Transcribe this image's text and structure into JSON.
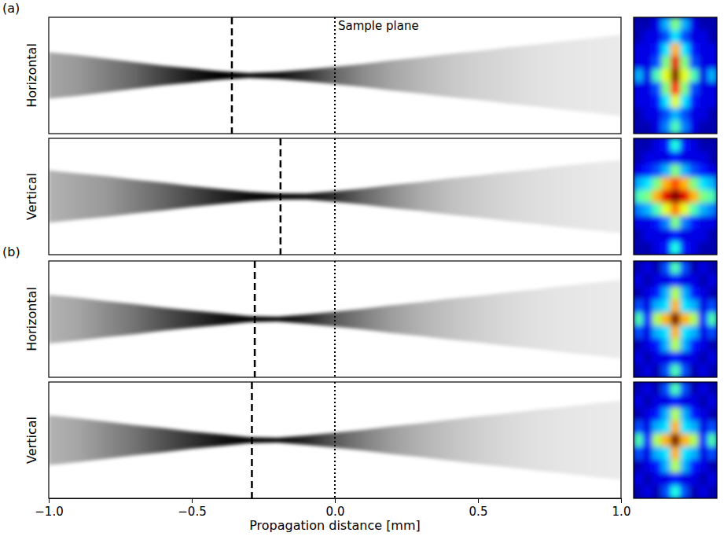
{
  "chart_data": [
    {
      "type": "area",
      "panel_label": "(a)",
      "ylabel": "Horizontal",
      "xlim": [
        -1,
        1
      ],
      "ylim": [
        -1,
        1
      ],
      "tick_labels": false,
      "x": [
        -1,
        -0.9,
        -0.8,
        -0.7,
        -0.6,
        -0.5,
        -0.4,
        -0.3,
        -0.2,
        -0.1,
        0,
        0.1,
        0.2,
        0.3,
        0.4,
        0.5,
        0.6,
        0.7,
        0.8,
        0.9,
        1
      ],
      "values": [
        0.4,
        0.35,
        0.29,
        0.23,
        0.17,
        0.12,
        0.07,
        0.04,
        0.06,
        0.1,
        0.15,
        0.2,
        0.26,
        0.31,
        0.37,
        0.42,
        0.48,
        0.53,
        0.59,
        0.64,
        0.7
      ],
      "intensity": [
        0.35,
        0.4,
        0.5,
        0.6,
        0.75,
        0.9,
        1.0,
        1.0,
        0.95,
        0.8,
        0.6,
        0.45,
        0.35,
        0.28,
        0.22,
        0.18,
        0.15,
        0.12,
        0.1,
        0.09,
        0.08
      ],
      "vlines": [
        {
          "x": -0.36,
          "line_style": "dashed"
        },
        {
          "x": 0,
          "line_style": "dotted"
        }
      ],
      "annotations": [
        {
          "x": 0,
          "text": "Sample plane"
        }
      ]
    },
    {
      "type": "heatmap",
      "tick_labels": false,
      "cell_range": [
        0,
        1
      ],
      "cells": [
        [
          0.05,
          0.05,
          0.1,
          0.3,
          0.5,
          0.3,
          0.1,
          0.05,
          0.05
        ],
        [
          0.05,
          0.1,
          0.1,
          0.2,
          0.35,
          0.2,
          0.1,
          0.1,
          0.05
        ],
        [
          0.1,
          0.1,
          0.15,
          0.35,
          0.7,
          0.35,
          0.15,
          0.1,
          0.1
        ],
        [
          0.1,
          0.1,
          0.2,
          0.5,
          0.9,
          0.5,
          0.2,
          0.1,
          0.1
        ],
        [
          0.3,
          0.1,
          0.45,
          0.6,
          1.0,
          0.6,
          0.45,
          0.1,
          0.3
        ],
        [
          0.1,
          0.1,
          0.2,
          0.5,
          0.85,
          0.5,
          0.2,
          0.1,
          0.1
        ],
        [
          0.1,
          0.1,
          0.15,
          0.35,
          0.6,
          0.35,
          0.15,
          0.1,
          0.1
        ],
        [
          0.05,
          0.1,
          0.1,
          0.2,
          0.3,
          0.2,
          0.1,
          0.1,
          0.05
        ],
        [
          0.05,
          0.05,
          0.1,
          0.25,
          0.45,
          0.25,
          0.1,
          0.05,
          0.05
        ]
      ]
    },
    {
      "type": "area",
      "ylabel": "Vertical",
      "xlim": [
        -1,
        1
      ],
      "ylim": [
        -1,
        1
      ],
      "tick_labels": false,
      "x": [
        -1,
        -0.9,
        -0.8,
        -0.7,
        -0.6,
        -0.5,
        -0.4,
        -0.3,
        -0.2,
        -0.1,
        0,
        0.1,
        0.2,
        0.3,
        0.4,
        0.5,
        0.6,
        0.7,
        0.8,
        0.9,
        1
      ],
      "values": [
        0.45,
        0.4,
        0.35,
        0.29,
        0.24,
        0.18,
        0.13,
        0.08,
        0.05,
        0.05,
        0.09,
        0.14,
        0.2,
        0.25,
        0.31,
        0.36,
        0.42,
        0.47,
        0.53,
        0.58,
        0.63
      ],
      "intensity": [
        0.3,
        0.35,
        0.4,
        0.5,
        0.6,
        0.72,
        0.85,
        0.95,
        1.0,
        0.95,
        0.8,
        0.6,
        0.45,
        0.33,
        0.25,
        0.2,
        0.16,
        0.13,
        0.11,
        0.09,
        0.08
      ],
      "vlines": [
        {
          "x": -0.19,
          "line_style": "dashed"
        },
        {
          "x": 0,
          "line_style": "dotted"
        }
      ]
    },
    {
      "type": "heatmap",
      "tick_labels": false,
      "cell_range": [
        0,
        1
      ],
      "cells": [
        [
          0.05,
          0.05,
          0.1,
          0.15,
          0.4,
          0.15,
          0.1,
          0.05,
          0.05
        ],
        [
          0.05,
          0.1,
          0.1,
          0.1,
          0.15,
          0.1,
          0.1,
          0.1,
          0.05
        ],
        [
          0.1,
          0.15,
          0.2,
          0.3,
          0.5,
          0.3,
          0.2,
          0.15,
          0.1
        ],
        [
          0.3,
          0.35,
          0.5,
          0.7,
          0.8,
          0.7,
          0.5,
          0.35,
          0.3
        ],
        [
          0.45,
          0.5,
          0.7,
          0.9,
          1.0,
          0.9,
          0.7,
          0.5,
          0.45
        ],
        [
          0.25,
          0.3,
          0.45,
          0.6,
          0.75,
          0.6,
          0.45,
          0.3,
          0.25
        ],
        [
          0.1,
          0.1,
          0.15,
          0.25,
          0.5,
          0.25,
          0.15,
          0.1,
          0.1
        ],
        [
          0.05,
          0.1,
          0.1,
          0.1,
          0.15,
          0.1,
          0.1,
          0.1,
          0.05
        ],
        [
          0.05,
          0.05,
          0.1,
          0.15,
          0.4,
          0.15,
          0.1,
          0.05,
          0.05
        ]
      ]
    },
    {
      "type": "area",
      "panel_label": "(b)",
      "ylabel": "Horizontal",
      "xlim": [
        -1,
        1
      ],
      "ylim": [
        -1,
        1
      ],
      "tick_labels": false,
      "x": [
        -1,
        -0.9,
        -0.8,
        -0.7,
        -0.6,
        -0.5,
        -0.4,
        -0.3,
        -0.2,
        -0.1,
        0,
        0.1,
        0.2,
        0.3,
        0.4,
        0.5,
        0.6,
        0.7,
        0.8,
        0.9,
        1
      ],
      "values": [
        0.42,
        0.37,
        0.31,
        0.26,
        0.2,
        0.15,
        0.1,
        0.05,
        0.04,
        0.08,
        0.13,
        0.18,
        0.24,
        0.29,
        0.35,
        0.4,
        0.46,
        0.51,
        0.57,
        0.62,
        0.68
      ],
      "intensity": [
        0.3,
        0.35,
        0.45,
        0.55,
        0.68,
        0.8,
        0.92,
        1.0,
        1.0,
        0.85,
        0.65,
        0.5,
        0.38,
        0.3,
        0.24,
        0.19,
        0.15,
        0.12,
        0.1,
        0.09,
        0.08
      ],
      "vlines": [
        {
          "x": -0.28,
          "line_style": "dashed"
        },
        {
          "x": 0,
          "line_style": "dotted"
        }
      ]
    },
    {
      "type": "heatmap",
      "tick_labels": false,
      "cell_range": [
        0,
        1
      ],
      "cells": [
        [
          0.05,
          0.1,
          0.05,
          0.2,
          0.45,
          0.2,
          0.05,
          0.1,
          0.05
        ],
        [
          0.1,
          0.05,
          0.1,
          0.1,
          0.15,
          0.1,
          0.1,
          0.05,
          0.1
        ],
        [
          0.05,
          0.1,
          0.15,
          0.3,
          0.55,
          0.3,
          0.15,
          0.1,
          0.05
        ],
        [
          0.2,
          0.1,
          0.3,
          0.35,
          0.7,
          0.35,
          0.3,
          0.1,
          0.2
        ],
        [
          0.45,
          0.15,
          0.55,
          0.7,
          1.0,
          0.7,
          0.55,
          0.15,
          0.45
        ],
        [
          0.2,
          0.1,
          0.3,
          0.35,
          0.7,
          0.35,
          0.3,
          0.1,
          0.2
        ],
        [
          0.05,
          0.1,
          0.15,
          0.3,
          0.55,
          0.3,
          0.15,
          0.1,
          0.05
        ],
        [
          0.1,
          0.05,
          0.1,
          0.1,
          0.15,
          0.1,
          0.1,
          0.05,
          0.1
        ],
        [
          0.05,
          0.1,
          0.05,
          0.2,
          0.45,
          0.2,
          0.05,
          0.1,
          0.05
        ]
      ]
    },
    {
      "type": "area",
      "ylabel": "Vertical",
      "xlim": [
        -1,
        1
      ],
      "ylim": [
        -1,
        1
      ],
      "tick_labels": "x",
      "xticks": [
        {
          "value": -1,
          "label": "−1.0"
        },
        {
          "value": -0.5,
          "label": "−0.5"
        },
        {
          "value": 0,
          "label": "0.0"
        },
        {
          "value": 0.5,
          "label": "0.5"
        },
        {
          "value": 1,
          "label": "1.0"
        }
      ],
      "xlabel": "Propagation distance  [mm]",
      "x": [
        -1,
        -0.9,
        -0.8,
        -0.7,
        -0.6,
        -0.5,
        -0.4,
        -0.3,
        -0.2,
        -0.1,
        0,
        0.1,
        0.2,
        0.3,
        0.4,
        0.5,
        0.6,
        0.7,
        0.8,
        0.9,
        1
      ],
      "values": [
        0.43,
        0.38,
        0.32,
        0.26,
        0.21,
        0.15,
        0.1,
        0.05,
        0.04,
        0.08,
        0.13,
        0.18,
        0.24,
        0.29,
        0.35,
        0.41,
        0.46,
        0.52,
        0.57,
        0.63,
        0.68
      ],
      "intensity": [
        0.3,
        0.35,
        0.45,
        0.55,
        0.68,
        0.8,
        0.92,
        1.0,
        1.0,
        0.85,
        0.65,
        0.5,
        0.38,
        0.3,
        0.24,
        0.19,
        0.15,
        0.12,
        0.1,
        0.09,
        0.08
      ],
      "vlines": [
        {
          "x": -0.29,
          "line_style": "dashed"
        },
        {
          "x": 0,
          "line_style": "dotted"
        }
      ]
    },
    {
      "type": "heatmap",
      "tick_labels": false,
      "cell_range": [
        0,
        1
      ],
      "cells": [
        [
          0.05,
          0.1,
          0.05,
          0.2,
          0.45,
          0.2,
          0.05,
          0.1,
          0.05
        ],
        [
          0.1,
          0.05,
          0.1,
          0.1,
          0.15,
          0.1,
          0.1,
          0.05,
          0.1
        ],
        [
          0.05,
          0.1,
          0.15,
          0.3,
          0.55,
          0.3,
          0.15,
          0.1,
          0.05
        ],
        [
          0.2,
          0.1,
          0.3,
          0.35,
          0.7,
          0.35,
          0.3,
          0.1,
          0.2
        ],
        [
          0.45,
          0.15,
          0.55,
          0.7,
          1.0,
          0.7,
          0.55,
          0.15,
          0.45
        ],
        [
          0.2,
          0.1,
          0.3,
          0.35,
          0.7,
          0.35,
          0.3,
          0.1,
          0.2
        ],
        [
          0.05,
          0.1,
          0.15,
          0.3,
          0.55,
          0.3,
          0.15,
          0.1,
          0.05
        ],
        [
          0.1,
          0.05,
          0.1,
          0.1,
          0.15,
          0.1,
          0.1,
          0.05,
          0.1
        ],
        [
          0.05,
          0.1,
          0.05,
          0.2,
          0.4,
          0.2,
          0.05,
          0.1,
          0.05
        ]
      ]
    }
  ]
}
